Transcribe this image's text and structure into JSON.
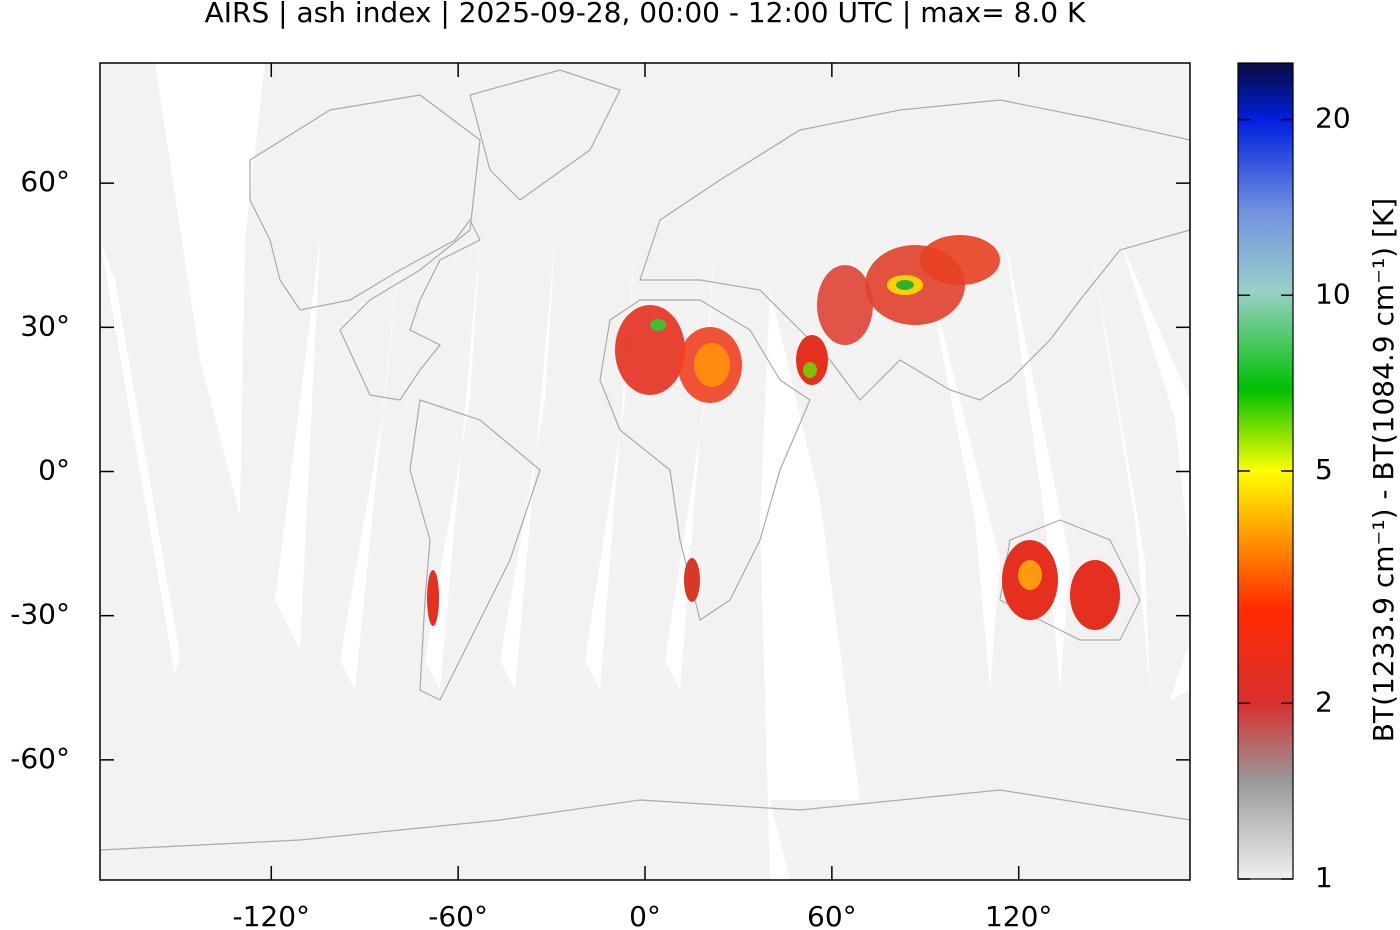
{
  "chart_data": {
    "type": "map",
    "title": "AIRS | ash index | 2025-09-28, 00:00 - 12:00 UTC | max= 8.0 K",
    "xlim": [
      -175,
      175
    ],
    "ylim": [
      -85,
      85
    ],
    "xticks": [
      {
        "value": -120,
        "label": "-120°"
      },
      {
        "value": -60,
        "label": "-60°"
      },
      {
        "value": 0,
        "label": "0°"
      },
      {
        "value": 60,
        "label": "60°"
      },
      {
        "value": 120,
        "label": "120°"
      }
    ],
    "yticks": [
      {
        "value": 60,
        "label": "60°"
      },
      {
        "value": 30,
        "label": "30°"
      },
      {
        "value": 0,
        "label": "0°"
      },
      {
        "value": -30,
        "label": "-30°"
      },
      {
        "value": -60,
        "label": "-60°"
      }
    ],
    "colorbar": {
      "label": "BT(1233.9 cm⁻¹) - BT(1084.9 cm⁻¹) [K]",
      "clim": [
        1,
        25
      ],
      "log": true,
      "ticks": [
        1,
        2,
        5,
        10,
        20
      ]
    }
  }
}
